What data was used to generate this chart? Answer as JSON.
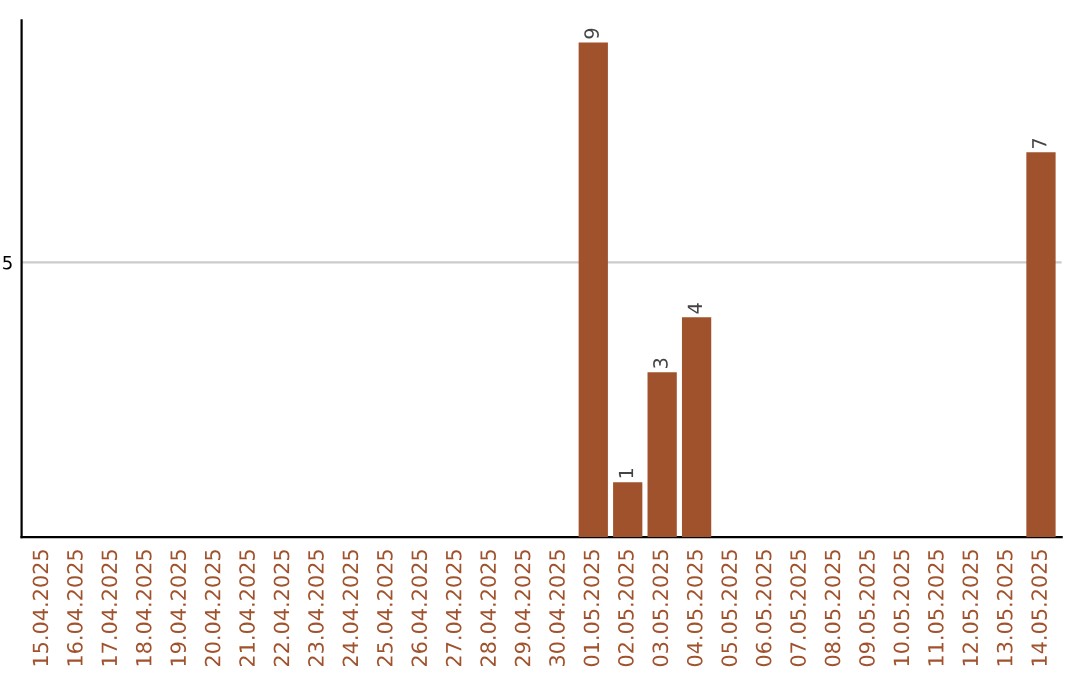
{
  "chart_data": {
    "type": "bar",
    "categories": [
      "15.04.2025",
      "16.04.2025",
      "17.04.2025",
      "18.04.2025",
      "19.04.2025",
      "20.04.2025",
      "21.04.2025",
      "22.04.2025",
      "23.04.2025",
      "24.04.2025",
      "25.04.2025",
      "26.04.2025",
      "27.04.2025",
      "28.04.2025",
      "29.04.2025",
      "30.04.2025",
      "01.05.2025",
      "02.05.2025",
      "03.05.2025",
      "04.05.2025",
      "05.05.2025",
      "06.05.2025",
      "07.05.2025",
      "08.05.2025",
      "09.05.2025",
      "10.05.2025",
      "11.05.2025",
      "12.05.2025",
      "13.05.2025",
      "14.05.2025"
    ],
    "values": [
      null,
      null,
      null,
      null,
      null,
      null,
      null,
      null,
      null,
      null,
      null,
      null,
      null,
      null,
      null,
      null,
      9,
      1,
      3,
      4,
      null,
      null,
      null,
      null,
      null,
      null,
      null,
      null,
      null,
      7
    ],
    "data_labels": true,
    "color": "#a0522d",
    "ylim": [
      0,
      9.4
    ],
    "yticks": [
      5
    ],
    "grid": "y",
    "legend": false
  }
}
